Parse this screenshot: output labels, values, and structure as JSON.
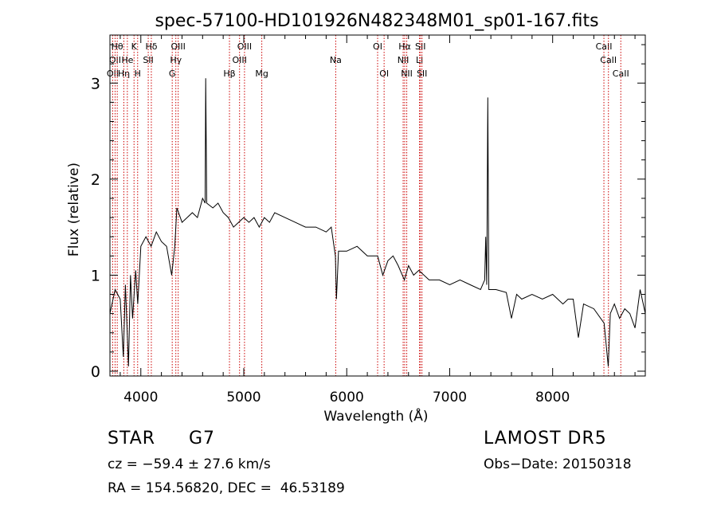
{
  "chart_data": {
    "type": "line",
    "title": "spec-57100-HD101926N482348M01_sp01-167.fits",
    "xlabel": "Wavelength (Å)",
    "ylabel": "Flux (relative)",
    "xlim": [
      3700,
      8900
    ],
    "ylim": [
      -0.05,
      3.5
    ],
    "xticks": [
      4000,
      5000,
      6000,
      7000,
      8000
    ],
    "xtick_labels": [
      "4000",
      "5000",
      "6000",
      "7000",
      "8000"
    ],
    "yticks": [
      0,
      1,
      2,
      3
    ],
    "ytick_labels": [
      "0",
      "1",
      "2",
      "3"
    ],
    "grid": false,
    "series": [
      {
        "color": "#000000",
        "points": [
          [
            3700,
            0.6
          ],
          [
            3750,
            0.85
          ],
          [
            3800,
            0.75
          ],
          [
            3830,
            0.15
          ],
          [
            3850,
            0.9
          ],
          [
            3880,
            0.05
          ],
          [
            3900,
            1.0
          ],
          [
            3920,
            0.55
          ],
          [
            3950,
            1.05
          ],
          [
            3970,
            0.7
          ],
          [
            4000,
            1.3
          ],
          [
            4050,
            1.4
          ],
          [
            4100,
            1.3
          ],
          [
            4150,
            1.45
          ],
          [
            4200,
            1.35
          ],
          [
            4250,
            1.3
          ],
          [
            4300,
            1.0
          ],
          [
            4330,
            1.3
          ],
          [
            4350,
            1.7
          ],
          [
            4400,
            1.55
          ],
          [
            4450,
            1.6
          ],
          [
            4500,
            1.65
          ],
          [
            4550,
            1.6
          ],
          [
            4600,
            1.8
          ],
          [
            4625,
            1.75
          ],
          [
            4630,
            3.05
          ],
          [
            4640,
            1.75
          ],
          [
            4700,
            1.7
          ],
          [
            4750,
            1.75
          ],
          [
            4800,
            1.65
          ],
          [
            4850,
            1.6
          ],
          [
            4900,
            1.5
          ],
          [
            4950,
            1.55
          ],
          [
            5000,
            1.6
          ],
          [
            5050,
            1.55
          ],
          [
            5100,
            1.6
          ],
          [
            5150,
            1.5
          ],
          [
            5200,
            1.6
          ],
          [
            5250,
            1.55
          ],
          [
            5300,
            1.65
          ],
          [
            5400,
            1.6
          ],
          [
            5500,
            1.55
          ],
          [
            5600,
            1.5
          ],
          [
            5700,
            1.5
          ],
          [
            5800,
            1.45
          ],
          [
            5850,
            1.5
          ],
          [
            5890,
            1.2
          ],
          [
            5900,
            0.75
          ],
          [
            5920,
            1.25
          ],
          [
            6000,
            1.25
          ],
          [
            6100,
            1.3
          ],
          [
            6200,
            1.2
          ],
          [
            6300,
            1.2
          ],
          [
            6350,
            1.0
          ],
          [
            6400,
            1.15
          ],
          [
            6450,
            1.2
          ],
          [
            6500,
            1.1
          ],
          [
            6560,
            0.95
          ],
          [
            6600,
            1.1
          ],
          [
            6650,
            1.0
          ],
          [
            6700,
            1.05
          ],
          [
            6800,
            0.95
          ],
          [
            6900,
            0.95
          ],
          [
            7000,
            0.9
          ],
          [
            7100,
            0.95
          ],
          [
            7200,
            0.9
          ],
          [
            7300,
            0.85
          ],
          [
            7340,
            0.95
          ],
          [
            7350,
            1.4
          ],
          [
            7360,
            0.9
          ],
          [
            7370,
            2.85
          ],
          [
            7380,
            0.85
          ],
          [
            7450,
            0.85
          ],
          [
            7550,
            0.82
          ],
          [
            7600,
            0.55
          ],
          [
            7650,
            0.8
          ],
          [
            7700,
            0.75
          ],
          [
            7800,
            0.8
          ],
          [
            7900,
            0.75
          ],
          [
            8000,
            0.8
          ],
          [
            8100,
            0.7
          ],
          [
            8150,
            0.75
          ],
          [
            8200,
            0.75
          ],
          [
            8250,
            0.35
          ],
          [
            8300,
            0.7
          ],
          [
            8400,
            0.65
          ],
          [
            8500,
            0.5
          ],
          [
            8540,
            0.05
          ],
          [
            8560,
            0.6
          ],
          [
            8600,
            0.7
          ],
          [
            8650,
            0.55
          ],
          [
            8700,
            0.65
          ],
          [
            8750,
            0.6
          ],
          [
            8800,
            0.45
          ],
          [
            8850,
            0.85
          ],
          [
            8900,
            0.6
          ]
        ]
      }
    ],
    "lines": [
      {
        "wavelength": 3727,
        "row": 3,
        "label": "OII"
      },
      {
        "wavelength": 3750,
        "row": 2,
        "label": "OII"
      },
      {
        "wavelength": 3771,
        "row": 1,
        "label": "Hθ"
      },
      {
        "wavelength": 3835,
        "row": 3,
        "label": "Hη"
      },
      {
        "wavelength": 3869,
        "row": 2,
        "label": "He"
      },
      {
        "wavelength": 3934,
        "row": 1,
        "label": "K"
      },
      {
        "wavelength": 3969,
        "row": 3,
        "label": "H"
      },
      {
        "wavelength": 4072,
        "row": 2,
        "label": "SII"
      },
      {
        "wavelength": 4102,
        "row": 1,
        "label": "Hδ"
      },
      {
        "wavelength": 4305,
        "row": 3,
        "label": "G"
      },
      {
        "wavelength": 4340,
        "row": 2,
        "label": "Hγ"
      },
      {
        "wavelength": 4363,
        "row": 1,
        "label": "OIII"
      },
      {
        "wavelength": 4861,
        "row": 3,
        "label": "Hβ"
      },
      {
        "wavelength": 4959,
        "row": 2,
        "label": "OIII"
      },
      {
        "wavelength": 5007,
        "row": 1,
        "label": "OIII"
      },
      {
        "wavelength": 5175,
        "row": 3,
        "label": "Mg"
      },
      {
        "wavelength": 5893,
        "row": 2,
        "label": "Na"
      },
      {
        "wavelength": 6300,
        "row": 1,
        "label": "OI"
      },
      {
        "wavelength": 6363,
        "row": 3,
        "label": "OI"
      },
      {
        "wavelength": 6548,
        "row": 2,
        "label": "NII"
      },
      {
        "wavelength": 6563,
        "row": 1,
        "label": "Hα"
      },
      {
        "wavelength": 6583,
        "row": 3,
        "label": "NII"
      },
      {
        "wavelength": 6707,
        "row": 2,
        "label": "Li"
      },
      {
        "wavelength": 6716,
        "row": 1,
        "label": "SII"
      },
      {
        "wavelength": 6731,
        "row": 3,
        "label": "SII"
      },
      {
        "wavelength": 8498,
        "row": 1,
        "label": "CaII"
      },
      {
        "wavelength": 8542,
        "row": 2,
        "label": "CaII"
      },
      {
        "wavelength": 8662,
        "row": 3,
        "label": "CaII"
      }
    ],
    "line_color": "#cc0000"
  },
  "footer": {
    "object_type": "STAR",
    "subclass": "G7",
    "survey": "LAMOST DR5",
    "cz": "cz = −59.4 ± 27.6 km/s",
    "obs_date": "Obs−Date: 20150318",
    "radec": "RA = 154.56820, DEC =  46.53189"
  }
}
